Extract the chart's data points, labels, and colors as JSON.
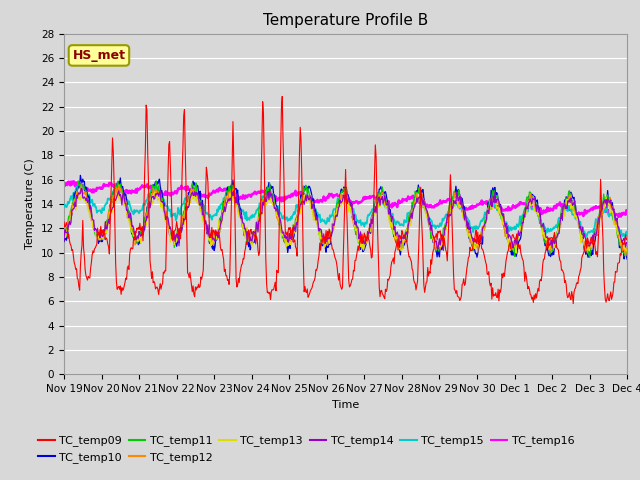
{
  "title": "Temperature Profile B",
  "xlabel": "Time",
  "ylabel": "Temperature (C)",
  "ylim": [
    0,
    28
  ],
  "yticks": [
    0,
    2,
    4,
    6,
    8,
    10,
    12,
    14,
    16,
    18,
    20,
    22,
    24,
    26,
    28
  ],
  "background_color": "#d8d8d8",
  "plot_bg_color": "#d8d8d8",
  "annotation_text": "HS_met",
  "annotation_box_color": "#ffff99",
  "annotation_box_edge": "#999900",
  "series_colors": {
    "TC_temp09": "#ff0000",
    "TC_temp10": "#0000dd",
    "TC_temp11": "#00cc00",
    "TC_temp12": "#ff8800",
    "TC_temp13": "#dddd00",
    "TC_temp14": "#9900cc",
    "TC_temp15": "#00cccc",
    "TC_temp16": "#ff00ff"
  },
  "x_tick_labels": [
    "Nov 19",
    "Nov 20",
    "Nov 21",
    "Nov 22",
    "Nov 23",
    "Nov 24",
    "Nov 25",
    "Nov 26",
    "Nov 27",
    "Nov 28",
    "Nov 29",
    "Nov 30",
    "Dec 1",
    "Dec 2",
    "Dec 3",
    "Dec 4"
  ],
  "title_fontsize": 11,
  "label_fontsize": 8,
  "tick_fontsize": 7.5,
  "legend_fontsize": 8
}
